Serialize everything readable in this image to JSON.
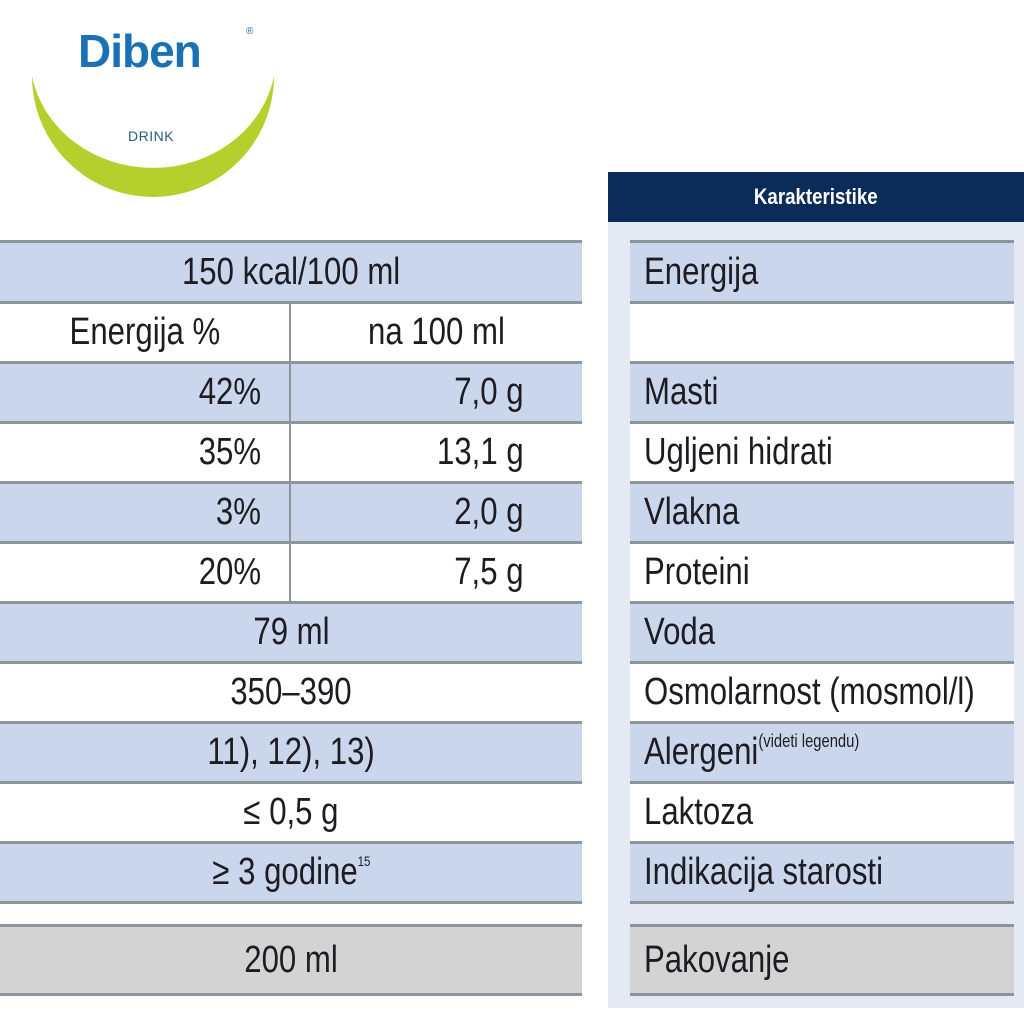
{
  "logo": {
    "brand": "Diben",
    "registered": "®",
    "subtitle": "DRINK",
    "colors": {
      "brand": "#1a72b5",
      "arc": "#b5cf2c"
    }
  },
  "header": {
    "title": "Karakteristike"
  },
  "table": {
    "kcal": "150 kcal/100 ml",
    "col_headers": [
      "Energija %",
      "na 100 ml"
    ],
    "labels": [
      "Energija",
      "",
      "Masti",
      "Ugljeni hidrati",
      "Vlakna",
      "Proteini",
      "Voda",
      "Osmolarnost (mosmol/l)",
      "Alergeni",
      "Laktoza",
      "Indikacija starosti",
      "Pakovanje"
    ],
    "allergen_note": "(videti legendu)",
    "nutrients": [
      {
        "pct": "42%",
        "amount": "7,0 g"
      },
      {
        "pct": "35%",
        "amount": "13,1 g"
      },
      {
        "pct": "3%",
        "amount": "2,0 g"
      },
      {
        "pct": "20%",
        "amount": "7,5 g"
      }
    ],
    "water": "79 ml",
    "osmolarity": "350–390",
    "allergens": "11), 12), 13)",
    "lactose": "≤ 0,5 g",
    "age": "≥ 3 godine",
    "age_footnote": "15",
    "package": "200 ml"
  }
}
